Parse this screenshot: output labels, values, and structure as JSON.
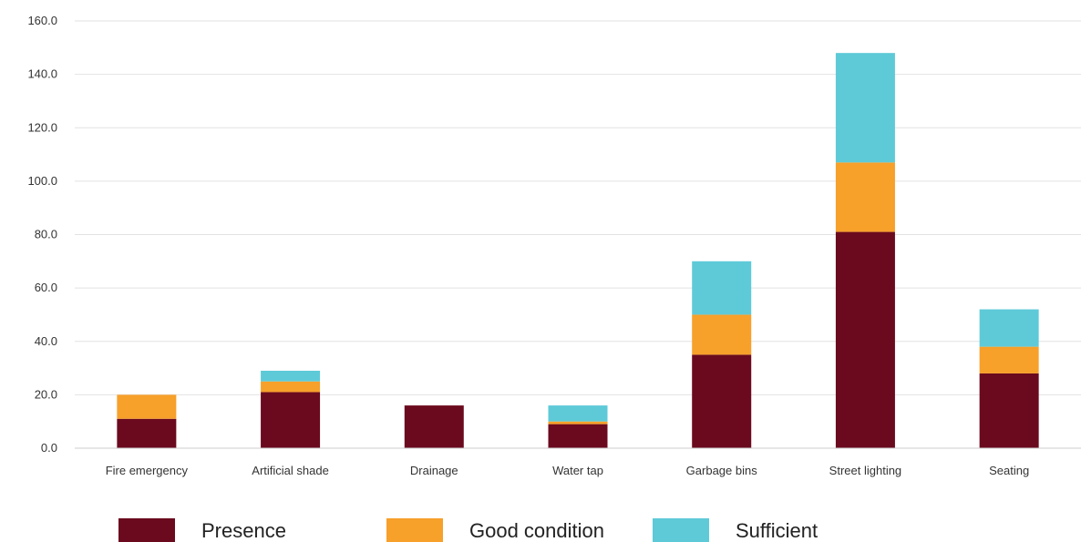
{
  "chart_data": {
    "type": "bar",
    "stacked": true,
    "categories": [
      "Fire emergency",
      "Artificial shade",
      "Drainage",
      "Water tap",
      "Garbage bins",
      "Street lighting",
      "Seating"
    ],
    "series": [
      {
        "name": "Presence",
        "color": "#6b0a1e",
        "values": [
          11,
          21,
          16,
          9,
          35,
          81,
          28
        ]
      },
      {
        "name": "Good condition",
        "color": "#f7a02a",
        "values": [
          9,
          4,
          0,
          1,
          15,
          26,
          10
        ]
      },
      {
        "name": "Sufficient",
        "color": "#5ecad8",
        "values": [
          0,
          4,
          0,
          6,
          20,
          41,
          14
        ]
      }
    ],
    "ylim": [
      0,
      160
    ],
    "yticks": [
      "0.0",
      "20.0",
      "40.0",
      "60.0",
      "80.0",
      "100.0",
      "120.0",
      "140.0",
      "160.0"
    ],
    "ytick_values": [
      0,
      20,
      40,
      60,
      80,
      100,
      120,
      140,
      160
    ],
    "grid": true,
    "legend_position": "bottom",
    "title": "",
    "xlabel": "",
    "ylabel": ""
  }
}
